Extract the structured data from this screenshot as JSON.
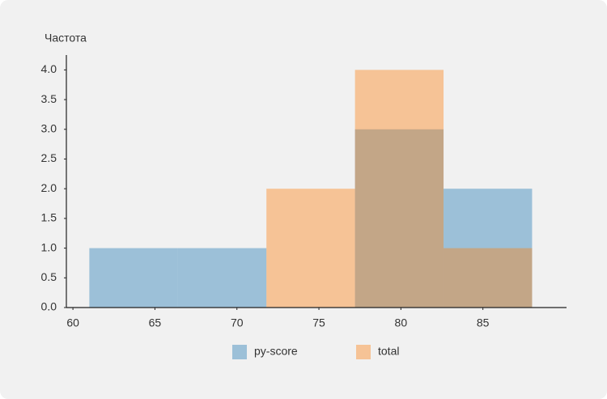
{
  "chart_data": {
    "type": "histogram",
    "ylabel": "Частота",
    "bins": [
      61,
      66.4,
      71.8,
      77.2,
      82.6,
      88
    ],
    "series": [
      {
        "name": "py-score",
        "color": "#1f77b4",
        "values": [
          1,
          1,
          0,
          3,
          2
        ]
      },
      {
        "name": "total",
        "color": "#ff7f0e",
        "values": [
          0,
          0,
          2,
          4,
          1
        ]
      }
    ],
    "alpha": 0.4,
    "xlim": [
      59.6,
      90.1
    ],
    "xticks": [
      60,
      65,
      70,
      75,
      80,
      85
    ],
    "ylim": [
      0,
      4.25
    ],
    "yticks": [
      {
        "value": 0,
        "label": "0.0"
      },
      0.5,
      {
        "value": 1,
        "label": "1.0"
      },
      1.5,
      {
        "value": 2,
        "label": "2.0"
      },
      2.5,
      {
        "value": 3,
        "label": "3.0"
      },
      3.5,
      {
        "value": 4,
        "label": "4.0"
      }
    ],
    "legend": "bottom"
  }
}
